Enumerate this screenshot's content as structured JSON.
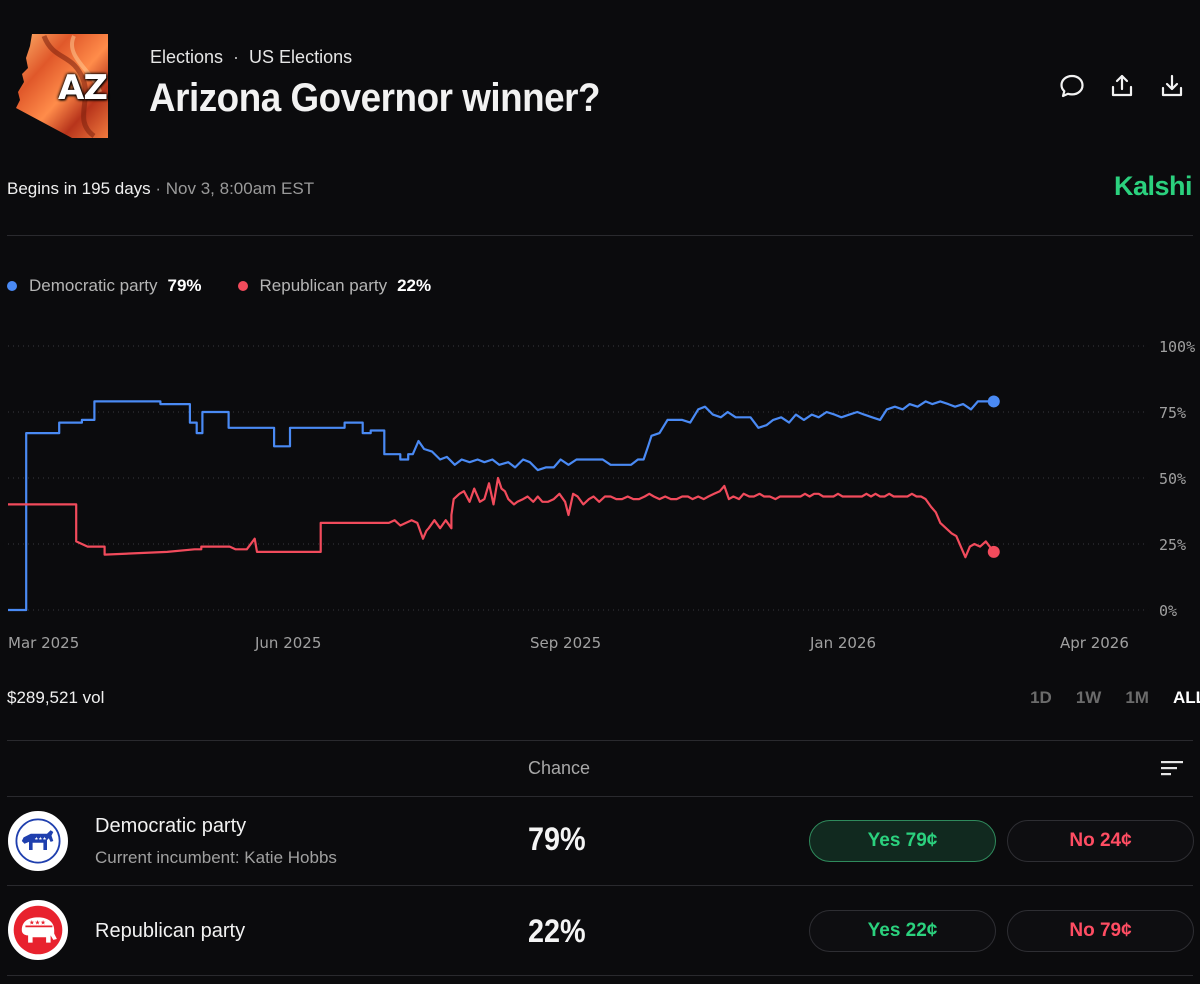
{
  "header": {
    "logo_text": "AZ",
    "breadcrumbs": [
      "Elections",
      "US Elections"
    ],
    "breadcrumb_separator": "·",
    "title": "Arizona Governor winner?"
  },
  "info": {
    "begins": "Begins in 195 days",
    "date": "· Nov 3, 8:00am EST",
    "brand": "Kalshi"
  },
  "legend": [
    {
      "label": "Democratic party",
      "value": "79%",
      "color": "#4a8af4"
    },
    {
      "label": "Republican party",
      "value": "22%",
      "color": "#f24b5c"
    }
  ],
  "chart_data": {
    "type": "line",
    "x_tick_labels": [
      "Mar 2025",
      "Jun 2025",
      "Sep 2025",
      "Jan 2026",
      "Apr 2026"
    ],
    "y_tick_labels": [
      "100%",
      "75%",
      "50%",
      "25%",
      "0%"
    ],
    "ylim": [
      0,
      100
    ],
    "grid": true,
    "series": [
      {
        "name": "Democratic party",
        "color": "#4a8af4",
        "points": [
          [
            0,
            0
          ],
          [
            1.6,
            0
          ],
          [
            1.6,
            67
          ],
          [
            4.5,
            67
          ],
          [
            4.5,
            71
          ],
          [
            6.5,
            71
          ],
          [
            6.5,
            72
          ],
          [
            7.6,
            72
          ],
          [
            7.6,
            79
          ],
          [
            13.4,
            79
          ],
          [
            13.4,
            78
          ],
          [
            16,
            78
          ],
          [
            16,
            71
          ],
          [
            16.6,
            71
          ],
          [
            16.6,
            67
          ],
          [
            17.1,
            67
          ],
          [
            17.1,
            75
          ],
          [
            19.4,
            75
          ],
          [
            19.4,
            69
          ],
          [
            23.4,
            69
          ],
          [
            23.4,
            62
          ],
          [
            24.8,
            62
          ],
          [
            24.8,
            69
          ],
          [
            29.6,
            69
          ],
          [
            29.6,
            71
          ],
          [
            31.2,
            71
          ],
          [
            31.2,
            67
          ],
          [
            31.9,
            67
          ],
          [
            31.9,
            68
          ],
          [
            33.1,
            68
          ],
          [
            33.1,
            59
          ],
          [
            34.5,
            59
          ],
          [
            34.5,
            57
          ],
          [
            35.2,
            57
          ],
          [
            35.2,
            59
          ],
          [
            35.6,
            59
          ],
          [
            36.1,
            64
          ],
          [
            36.6,
            61
          ],
          [
            37.3,
            60
          ],
          [
            38.0,
            57
          ],
          [
            38.6,
            58
          ],
          [
            39.3,
            55
          ],
          [
            39.9,
            57
          ],
          [
            40.6,
            56
          ],
          [
            41.3,
            57
          ],
          [
            41.9,
            56
          ],
          [
            42.6,
            57
          ],
          [
            43.2,
            55
          ],
          [
            44.0,
            56
          ],
          [
            44.6,
            54
          ],
          [
            45.3,
            57
          ],
          [
            45.9,
            56
          ],
          [
            46.6,
            53
          ],
          [
            47.3,
            54
          ],
          [
            48.0,
            54
          ],
          [
            48.6,
            57
          ],
          [
            49.3,
            55
          ],
          [
            50.0,
            57
          ],
          [
            50.6,
            57
          ],
          [
            51.2,
            57
          ],
          [
            51.8,
            57
          ],
          [
            52.3,
            57
          ],
          [
            53.0,
            55
          ],
          [
            54.0,
            55
          ],
          [
            54.8,
            55
          ],
          [
            55.4,
            57
          ],
          [
            55.9,
            57
          ],
          [
            56.3,
            62
          ],
          [
            56.6,
            66
          ],
          [
            57.3,
            67
          ],
          [
            58.0,
            72
          ],
          [
            58.7,
            72
          ],
          [
            59.3,
            72
          ],
          [
            60.0,
            71
          ],
          [
            60.7,
            76
          ],
          [
            61.3,
            77
          ],
          [
            62.0,
            74
          ],
          [
            62.7,
            73
          ],
          [
            63.3,
            75
          ],
          [
            64.0,
            73
          ],
          [
            64.7,
            73
          ],
          [
            65.3,
            73
          ],
          [
            66.0,
            69
          ],
          [
            66.7,
            70
          ],
          [
            67.3,
            72
          ],
          [
            68.0,
            73
          ],
          [
            68.7,
            71
          ],
          [
            69.3,
            74
          ],
          [
            70.0,
            72
          ],
          [
            70.7,
            74
          ],
          [
            71.3,
            73
          ],
          [
            72.0,
            75
          ],
          [
            72.7,
            74
          ],
          [
            73.3,
            73
          ],
          [
            74.0,
            74
          ],
          [
            74.7,
            75
          ],
          [
            75.3,
            74
          ],
          [
            76.0,
            73
          ],
          [
            76.7,
            72
          ],
          [
            77.3,
            76
          ],
          [
            78.0,
            77
          ],
          [
            78.7,
            76
          ],
          [
            79.3,
            78
          ],
          [
            80.0,
            77
          ],
          [
            80.7,
            79
          ],
          [
            81.3,
            78
          ],
          [
            82.0,
            79
          ],
          [
            82.7,
            78
          ],
          [
            83.3,
            77
          ],
          [
            84.0,
            78
          ],
          [
            84.7,
            76
          ],
          [
            85.3,
            79
          ],
          [
            86.0,
            79
          ],
          [
            86.7,
            79
          ]
        ]
      },
      {
        "name": "Republican party",
        "color": "#f24b5c",
        "points": [
          [
            0,
            40
          ],
          [
            6,
            40
          ],
          [
            6,
            26
          ],
          [
            7,
            24
          ],
          [
            8.5,
            24
          ],
          [
            8.5,
            21
          ],
          [
            14,
            22
          ],
          [
            16.4,
            23
          ],
          [
            17,
            23
          ],
          [
            17,
            24
          ],
          [
            19.5,
            24
          ],
          [
            20,
            23
          ],
          [
            21,
            23
          ],
          [
            21.7,
            27
          ],
          [
            21.9,
            22
          ],
          [
            26,
            22
          ],
          [
            27.5,
            22
          ],
          [
            27.5,
            33
          ],
          [
            33,
            33
          ],
          [
            33.5,
            33
          ],
          [
            34,
            34
          ],
          [
            34.5,
            32
          ],
          [
            35,
            33
          ],
          [
            35.5,
            34
          ],
          [
            36,
            33
          ],
          [
            36.5,
            27
          ],
          [
            36.8,
            30
          ],
          [
            37,
            31
          ],
          [
            37.5,
            34
          ],
          [
            38,
            31
          ],
          [
            38.5,
            34
          ],
          [
            39,
            31
          ],
          [
            39,
            36
          ],
          [
            39.2,
            42
          ],
          [
            39.7,
            44
          ],
          [
            40.1,
            45
          ],
          [
            40.6,
            41
          ],
          [
            41,
            46
          ],
          [
            41.5,
            41
          ],
          [
            41.9,
            42
          ],
          [
            42.3,
            48
          ],
          [
            42.7,
            40
          ],
          [
            43.1,
            50
          ],
          [
            43.4,
            46
          ],
          [
            43.7,
            45
          ],
          [
            44,
            42
          ],
          [
            44.5,
            40
          ],
          [
            44.8,
            41
          ],
          [
            45.3,
            42
          ],
          [
            45.7,
            43
          ],
          [
            46.2,
            41
          ],
          [
            46.6,
            43
          ],
          [
            47.0,
            41
          ],
          [
            47.5,
            41
          ],
          [
            48.0,
            42
          ],
          [
            48.5,
            44
          ],
          [
            49.0,
            41
          ],
          [
            49.3,
            36
          ],
          [
            49.7,
            44
          ],
          [
            50.1,
            43
          ],
          [
            50.6,
            40
          ],
          [
            51.1,
            42
          ],
          [
            51.5,
            43
          ],
          [
            52.0,
            41
          ],
          [
            52.5,
            43
          ],
          [
            53.0,
            43
          ],
          [
            53.5,
            42
          ],
          [
            54.0,
            42
          ],
          [
            54.5,
            43
          ],
          [
            55.0,
            42
          ],
          [
            55.5,
            42
          ],
          [
            56.0,
            43
          ],
          [
            56.4,
            44
          ],
          [
            56.8,
            43
          ],
          [
            57.3,
            42
          ],
          [
            57.8,
            43
          ],
          [
            58.3,
            42
          ],
          [
            58.8,
            42
          ],
          [
            59.3,
            43
          ],
          [
            59.8,
            43
          ],
          [
            60.2,
            42
          ],
          [
            60.7,
            43
          ],
          [
            61.2,
            42
          ],
          [
            61.6,
            43
          ],
          [
            62.1,
            44
          ],
          [
            62.6,
            45
          ],
          [
            63.0,
            47
          ],
          [
            63.4,
            42
          ],
          [
            63.8,
            43
          ],
          [
            64.3,
            42
          ],
          [
            64.7,
            44
          ],
          [
            65.2,
            43
          ],
          [
            65.6,
            43
          ],
          [
            66.1,
            44
          ],
          [
            66.5,
            43
          ],
          [
            67.0,
            43
          ],
          [
            67.5,
            42
          ],
          [
            67.9,
            43
          ],
          [
            68.4,
            43
          ],
          [
            68.8,
            43
          ],
          [
            69.3,
            43
          ],
          [
            69.7,
            43
          ],
          [
            70.1,
            44
          ],
          [
            70.5,
            43
          ],
          [
            70.9,
            44
          ],
          [
            71.3,
            44
          ],
          [
            71.7,
            43
          ],
          [
            72.2,
            43
          ],
          [
            72.6,
            43
          ],
          [
            73.0,
            44
          ],
          [
            73.4,
            43
          ],
          [
            73.8,
            43
          ],
          [
            74.3,
            43
          ],
          [
            74.7,
            43
          ],
          [
            75.1,
            43
          ],
          [
            75.5,
            44
          ],
          [
            75.9,
            43
          ],
          [
            76.3,
            44
          ],
          [
            76.7,
            43
          ],
          [
            77.1,
            43
          ],
          [
            77.5,
            44
          ],
          [
            77.9,
            43
          ],
          [
            78.3,
            43
          ],
          [
            78.7,
            43
          ],
          [
            79.1,
            43
          ],
          [
            79.5,
            44
          ],
          [
            79.9,
            43
          ],
          [
            80.3,
            43
          ],
          [
            80.7,
            42
          ],
          [
            81.2,
            39
          ],
          [
            81.6,
            37
          ],
          [
            82.0,
            33
          ],
          [
            82.5,
            31
          ],
          [
            83.0,
            29
          ],
          [
            83.4,
            28
          ],
          [
            83.8,
            24
          ],
          [
            84.2,
            20
          ],
          [
            84.6,
            24
          ],
          [
            85.0,
            25
          ],
          [
            85.5,
            24
          ],
          [
            86.0,
            26
          ],
          [
            86.7,
            22
          ]
        ]
      }
    ]
  },
  "volume": "$289,521 vol",
  "ranges": [
    {
      "label": "1D",
      "active": false
    },
    {
      "label": "1W",
      "active": false
    },
    {
      "label": "1M",
      "active": false
    },
    {
      "label": "ALL",
      "active": true
    }
  ],
  "table": {
    "chance_header": "Chance",
    "rows": [
      {
        "name": "Democratic party",
        "subtitle": "Current incumbent: Katie Hobbs",
        "chance": "79%",
        "yes": "Yes 79¢",
        "no": "No 24¢"
      },
      {
        "name": "Republican party",
        "subtitle": "",
        "chance": "22%",
        "yes": "Yes 22¢",
        "no": "No 79¢"
      }
    ]
  }
}
